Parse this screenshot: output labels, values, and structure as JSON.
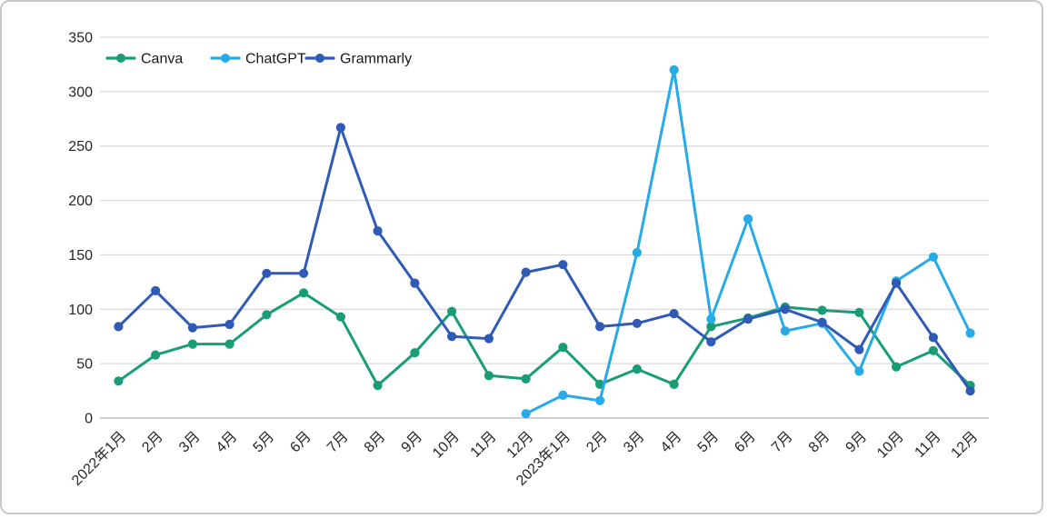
{
  "chart_data": {
    "type": "line",
    "title": "",
    "xlabel": "",
    "ylabel": "",
    "grid": true,
    "legend_position": "top-left",
    "ylim": [
      0,
      350
    ],
    "ytick_step": 50,
    "categories": [
      "2022年1月",
      "2月",
      "3月",
      "4月",
      "5月",
      "6月",
      "7月",
      "8月",
      "9月",
      "10月",
      "11月",
      "12月",
      "2023年1月",
      "2月",
      "3月",
      "4月",
      "5月",
      "6月",
      "7月",
      "8月",
      "9月",
      "10月",
      "11月",
      "12月"
    ],
    "series": [
      {
        "name": "Canva",
        "color": "#199d77",
        "values": [
          34,
          58,
          68,
          68,
          95,
          115,
          93,
          30,
          60,
          98,
          39,
          36,
          65,
          31,
          45,
          31,
          84,
          92,
          102,
          99,
          97,
          47,
          62,
          30
        ]
      },
      {
        "name": "ChatGPT",
        "color": "#27aae8",
        "values": [
          null,
          null,
          null,
          null,
          null,
          null,
          null,
          null,
          null,
          null,
          null,
          4,
          21,
          16,
          152,
          320,
          91,
          183,
          80,
          87,
          43,
          126,
          148,
          78
        ]
      },
      {
        "name": "Grammarly",
        "color": "#2f5bb7",
        "values": [
          84,
          117,
          83,
          86,
          133,
          133,
          267,
          172,
          124,
          75,
          73,
          134,
          141,
          84,
          87,
          96,
          70,
          91,
          100,
          88,
          63,
          124,
          74,
          25
        ]
      }
    ]
  },
  "style": {
    "grid_color": "#d9d9d9",
    "axis_line_color": "#bfbfbf",
    "tick_text_color": "#262626",
    "legend_text_color": "#1a1a1a",
    "background": "#ffffff"
  }
}
